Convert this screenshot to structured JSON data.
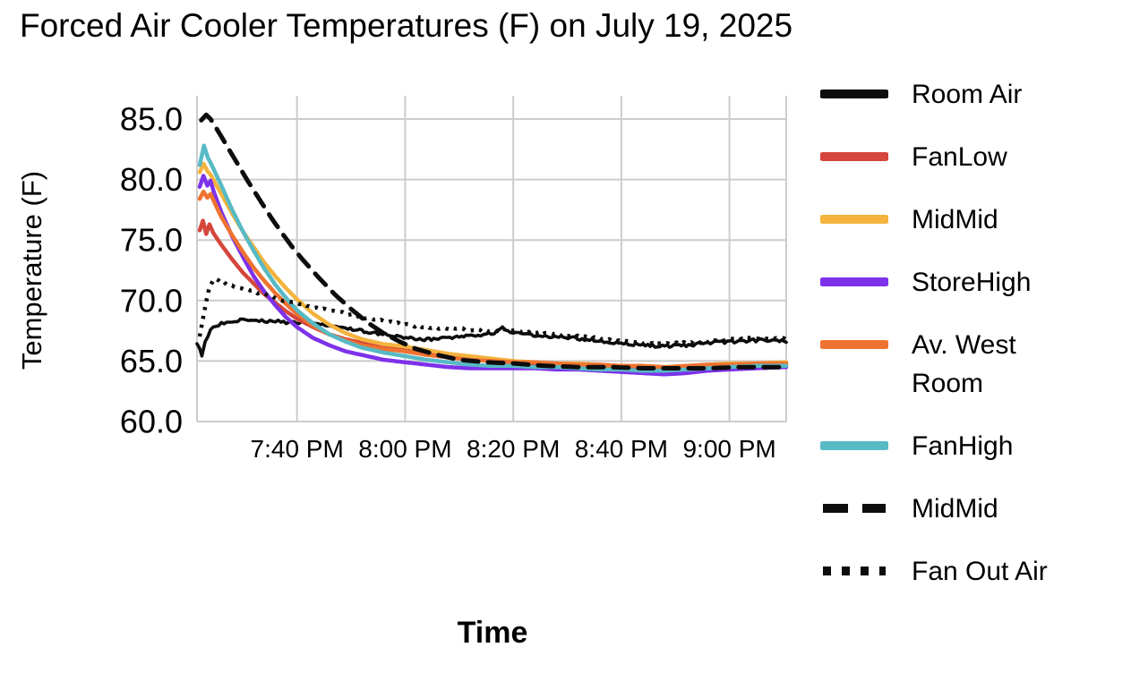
{
  "chart_data": {
    "type": "line",
    "title": "Forced Air Cooler Temperatures (F) on July 19, 2025",
    "xlabel": "Time",
    "ylabel": "Temperature (F)",
    "grid": true,
    "grid_color": "#cccccc",
    "legend_position": "right",
    "x_axis": {
      "unit": "minutes after 7:00 PM",
      "range": [
        21.5,
        130.5
      ],
      "ticks": [
        {
          "t": 40,
          "label": "7:40 PM"
        },
        {
          "t": 60,
          "label": "8:00 PM"
        },
        {
          "t": 80,
          "label": "8:20 PM"
        },
        {
          "t": 100,
          "label": "8:40 PM"
        },
        {
          "t": 120,
          "label": "9:00 PM"
        }
      ]
    },
    "y_axis": {
      "range": [
        60,
        86.9
      ],
      "ticks": [
        {
          "v": 85,
          "label": "85.0"
        },
        {
          "v": 80,
          "label": "80.0"
        },
        {
          "v": 75,
          "label": "75.0"
        },
        {
          "v": 70,
          "label": "70.0"
        },
        {
          "v": 65,
          "label": "65.0"
        },
        {
          "v": 60,
          "label": "60.0"
        }
      ]
    },
    "series": [
      {
        "name": "Room Air",
        "color": "#0d0d0d",
        "dash": "solid",
        "width": 3.6,
        "noise": 0.13,
        "points": [
          [
            21.5,
            66.4
          ],
          [
            22,
            66.1
          ],
          [
            22.4,
            65.5
          ],
          [
            23,
            66.5
          ],
          [
            23.5,
            67.1
          ],
          [
            24,
            67.5
          ],
          [
            25,
            67.9
          ],
          [
            26,
            68.1
          ],
          [
            27,
            68.2
          ],
          [
            28,
            68.3
          ],
          [
            30,
            68.4
          ],
          [
            32,
            68.4
          ],
          [
            34,
            68.3
          ],
          [
            36,
            68.3
          ],
          [
            38,
            68.2
          ],
          [
            40,
            68.2
          ],
          [
            43,
            68.1
          ],
          [
            46,
            67.9
          ],
          [
            49,
            67.7
          ],
          [
            52,
            67.5
          ],
          [
            55,
            67.3
          ],
          [
            58,
            67.1
          ],
          [
            61,
            66.9
          ],
          [
            64,
            66.8
          ],
          [
            67,
            66.9
          ],
          [
            70,
            67.0
          ],
          [
            73,
            67.1
          ],
          [
            75,
            67.2
          ],
          [
            77,
            67.4
          ],
          [
            78,
            67.7
          ],
          [
            79,
            67.5
          ],
          [
            80,
            67.3
          ],
          [
            82,
            67.2
          ],
          [
            85,
            67.1
          ],
          [
            88,
            67.0
          ],
          [
            91,
            66.9
          ],
          [
            95,
            66.7
          ],
          [
            100,
            66.5
          ],
          [
            104,
            66.3
          ],
          [
            108,
            66.2
          ],
          [
            112,
            66.3
          ],
          [
            116,
            66.5
          ],
          [
            120,
            66.6
          ],
          [
            124,
            66.7
          ],
          [
            128,
            66.7
          ],
          [
            130.5,
            66.6
          ]
        ]
      },
      {
        "name": "FanLow",
        "color": "#d5463d",
        "dash": "solid",
        "width": 4.5,
        "noise": 0,
        "points": [
          [
            22,
            75.8
          ],
          [
            22.6,
            76.6
          ],
          [
            23.2,
            75.5
          ],
          [
            23.8,
            76.3
          ],
          [
            24.5,
            75.6
          ],
          [
            26,
            74.6
          ],
          [
            28,
            73.4
          ],
          [
            30,
            72.3
          ],
          [
            32,
            71.4
          ],
          [
            34,
            70.5
          ],
          [
            36,
            69.8
          ],
          [
            38,
            69.1
          ],
          [
            40,
            68.5
          ],
          [
            43,
            67.8
          ],
          [
            46,
            67.2
          ],
          [
            49,
            66.8
          ],
          [
            52,
            66.5
          ],
          [
            56,
            66.3
          ],
          [
            60,
            66.1
          ],
          [
            64,
            65.8
          ],
          [
            68,
            65.5
          ],
          [
            72,
            65.3
          ],
          [
            76,
            65.1
          ],
          [
            80,
            64.9
          ],
          [
            84,
            64.8
          ],
          [
            88,
            64.7
          ],
          [
            92,
            64.6
          ],
          [
            96,
            64.6
          ],
          [
            100,
            64.5
          ],
          [
            104,
            64.5
          ],
          [
            108,
            64.4
          ],
          [
            112,
            64.5
          ],
          [
            116,
            64.5
          ],
          [
            120,
            64.6
          ],
          [
            125,
            64.7
          ],
          [
            130.5,
            64.7
          ]
        ]
      },
      {
        "name": "MidMid",
        "color": "#f3b33d",
        "dash": "solid",
        "width": 4.5,
        "noise": 0,
        "points": [
          [
            22,
            80.6
          ],
          [
            22.7,
            81.3
          ],
          [
            23.4,
            80.7
          ],
          [
            24,
            80.4
          ],
          [
            26,
            78.8
          ],
          [
            28,
            77.2
          ],
          [
            30,
            75.7
          ],
          [
            32,
            74.4
          ],
          [
            34,
            73.1
          ],
          [
            36,
            72.0
          ],
          [
            38,
            71.0
          ],
          [
            40,
            70.1
          ],
          [
            43,
            68.9
          ],
          [
            46,
            68.0
          ],
          [
            49,
            67.3
          ],
          [
            52,
            66.8
          ],
          [
            56,
            66.4
          ],
          [
            60,
            66.2
          ],
          [
            64,
            65.9
          ],
          [
            68,
            65.6
          ],
          [
            72,
            65.4
          ],
          [
            76,
            65.2
          ],
          [
            80,
            65.0
          ],
          [
            84,
            64.9
          ],
          [
            88,
            64.8
          ],
          [
            92,
            64.8
          ],
          [
            96,
            64.7
          ],
          [
            100,
            64.6
          ],
          [
            104,
            64.6
          ],
          [
            108,
            64.5
          ],
          [
            112,
            64.6
          ],
          [
            116,
            64.7
          ],
          [
            120,
            64.8
          ],
          [
            125,
            64.8
          ],
          [
            130.5,
            64.9
          ]
        ]
      },
      {
        "name": "StoreHigh",
        "color": "#7d32ea",
        "dash": "solid",
        "width": 4.5,
        "noise": 0,
        "points": [
          [
            22,
            79.4
          ],
          [
            22.7,
            80.3
          ],
          [
            23.4,
            79.5
          ],
          [
            24,
            79.9
          ],
          [
            24.6,
            79.0
          ],
          [
            26,
            77.3
          ],
          [
            28,
            75.3
          ],
          [
            30,
            73.6
          ],
          [
            32,
            72.0
          ],
          [
            34,
            70.7
          ],
          [
            36,
            69.6
          ],
          [
            38,
            68.6
          ],
          [
            40,
            67.8
          ],
          [
            43,
            66.9
          ],
          [
            46,
            66.3
          ],
          [
            49,
            65.8
          ],
          [
            52,
            65.5
          ],
          [
            56,
            65.1
          ],
          [
            60,
            64.9
          ],
          [
            64,
            64.7
          ],
          [
            68,
            64.5
          ],
          [
            72,
            64.4
          ],
          [
            76,
            64.4
          ],
          [
            80,
            64.4
          ],
          [
            84,
            64.4
          ],
          [
            88,
            64.3
          ],
          [
            92,
            64.3
          ],
          [
            96,
            64.2
          ],
          [
            100,
            64.1
          ],
          [
            104,
            64.0
          ],
          [
            108,
            63.9
          ],
          [
            112,
            64.0
          ],
          [
            116,
            64.2
          ],
          [
            120,
            64.3
          ],
          [
            125,
            64.4
          ],
          [
            130.5,
            64.5
          ]
        ]
      },
      {
        "name": "Av. West Room",
        "color": "#ee7330",
        "dash": "solid",
        "width": 4.5,
        "noise": 0,
        "points": [
          [
            22,
            78.4
          ],
          [
            22.7,
            79.0
          ],
          [
            23.4,
            78.5
          ],
          [
            24,
            78.8
          ],
          [
            26,
            76.9
          ],
          [
            28,
            75.4
          ],
          [
            30,
            74.0
          ],
          [
            32,
            72.7
          ],
          [
            34,
            71.6
          ],
          [
            36,
            70.6
          ],
          [
            38,
            69.7
          ],
          [
            40,
            68.9
          ],
          [
            43,
            67.9
          ],
          [
            46,
            67.2
          ],
          [
            49,
            66.7
          ],
          [
            52,
            66.3
          ],
          [
            56,
            66.0
          ],
          [
            60,
            65.8
          ],
          [
            64,
            65.5
          ],
          [
            68,
            65.3
          ],
          [
            72,
            65.1
          ],
          [
            76,
            65.0
          ],
          [
            80,
            64.9
          ],
          [
            84,
            64.9
          ],
          [
            88,
            64.8
          ],
          [
            92,
            64.7
          ],
          [
            96,
            64.7
          ],
          [
            100,
            64.6
          ],
          [
            104,
            64.6
          ],
          [
            108,
            64.5
          ],
          [
            112,
            64.6
          ],
          [
            116,
            64.7
          ],
          [
            120,
            64.7
          ],
          [
            125,
            64.8
          ],
          [
            130.5,
            64.8
          ]
        ]
      },
      {
        "name": "FanHigh",
        "color": "#57bac5",
        "dash": "solid",
        "width": 4.5,
        "noise": 0,
        "points": [
          [
            22,
            81.2
          ],
          [
            22.8,
            82.8
          ],
          [
            23.5,
            81.8
          ],
          [
            24,
            81.4
          ],
          [
            26,
            79.5
          ],
          [
            28,
            77.5
          ],
          [
            30,
            75.7
          ],
          [
            32,
            74.1
          ],
          [
            34,
            72.6
          ],
          [
            36,
            71.3
          ],
          [
            38,
            70.2
          ],
          [
            40,
            69.2
          ],
          [
            43,
            68.1
          ],
          [
            46,
            67.2
          ],
          [
            49,
            66.6
          ],
          [
            52,
            66.1
          ],
          [
            56,
            65.7
          ],
          [
            60,
            65.4
          ],
          [
            64,
            65.1
          ],
          [
            68,
            64.9
          ],
          [
            72,
            64.7
          ],
          [
            76,
            64.6
          ],
          [
            80,
            64.6
          ],
          [
            84,
            64.5
          ],
          [
            88,
            64.5
          ],
          [
            92,
            64.4
          ],
          [
            96,
            64.3
          ],
          [
            100,
            64.3
          ],
          [
            104,
            64.2
          ],
          [
            108,
            64.2
          ],
          [
            112,
            64.3
          ],
          [
            116,
            64.4
          ],
          [
            120,
            64.5
          ],
          [
            125,
            64.6
          ],
          [
            130.5,
            64.6
          ]
        ]
      },
      {
        "name": "MidMid",
        "color": "#0d0d0d",
        "dash": "dashed",
        "width": 5,
        "noise": 0,
        "points": [
          [
            22.3,
            84.9
          ],
          [
            23.2,
            85.35
          ],
          [
            24,
            85.0
          ],
          [
            25,
            84.3
          ],
          [
            27,
            82.8
          ],
          [
            29,
            81.3
          ],
          [
            31,
            79.8
          ],
          [
            33,
            78.4
          ],
          [
            35,
            77.0
          ],
          [
            37,
            75.7
          ],
          [
            39,
            74.5
          ],
          [
            41,
            73.4
          ],
          [
            44,
            71.9
          ],
          [
            47,
            70.5
          ],
          [
            50,
            69.3
          ],
          [
            53,
            68.2
          ],
          [
            56,
            67.3
          ],
          [
            59,
            66.6
          ],
          [
            62,
            66.0
          ],
          [
            66,
            65.5
          ],
          [
            70,
            65.1
          ],
          [
            75,
            64.9
          ],
          [
            80,
            64.8
          ],
          [
            86,
            64.6
          ],
          [
            92,
            64.5
          ],
          [
            98,
            64.5
          ],
          [
            104,
            64.4
          ],
          [
            110,
            64.4
          ],
          [
            116,
            64.4
          ],
          [
            122,
            64.5
          ],
          [
            127,
            64.5
          ],
          [
            130.5,
            64.5
          ]
        ]
      },
      {
        "name": "Fan Out Air",
        "color": "#0d0d0d",
        "dash": "dotted",
        "width": 4.5,
        "noise": 0.1,
        "points": [
          [
            22,
            67.0
          ],
          [
            22.6,
            68.5
          ],
          [
            23.2,
            70.0
          ],
          [
            24,
            71.3
          ],
          [
            24.6,
            71.8
          ],
          [
            26,
            71.5
          ],
          [
            28,
            71.2
          ],
          [
            31,
            70.9
          ],
          [
            34,
            70.5
          ],
          [
            37,
            70.1
          ],
          [
            40,
            69.8
          ],
          [
            44,
            69.4
          ],
          [
            48,
            69.0
          ],
          [
            52,
            68.6
          ],
          [
            56,
            68.3
          ],
          [
            60,
            68.0
          ],
          [
            64,
            67.8
          ],
          [
            68,
            67.7
          ],
          [
            72,
            67.6
          ],
          [
            76,
            67.5
          ],
          [
            78,
            67.6
          ],
          [
            80,
            67.6
          ],
          [
            82,
            67.4
          ],
          [
            85,
            67.3
          ],
          [
            88,
            67.2
          ],
          [
            91,
            67.1
          ],
          [
            95,
            66.9
          ],
          [
            100,
            66.7
          ],
          [
            104,
            66.5
          ],
          [
            108,
            66.4
          ],
          [
            112,
            66.5
          ],
          [
            116,
            66.6
          ],
          [
            120,
            66.8
          ],
          [
            125,
            66.9
          ],
          [
            130.5,
            66.8
          ]
        ]
      }
    ]
  }
}
